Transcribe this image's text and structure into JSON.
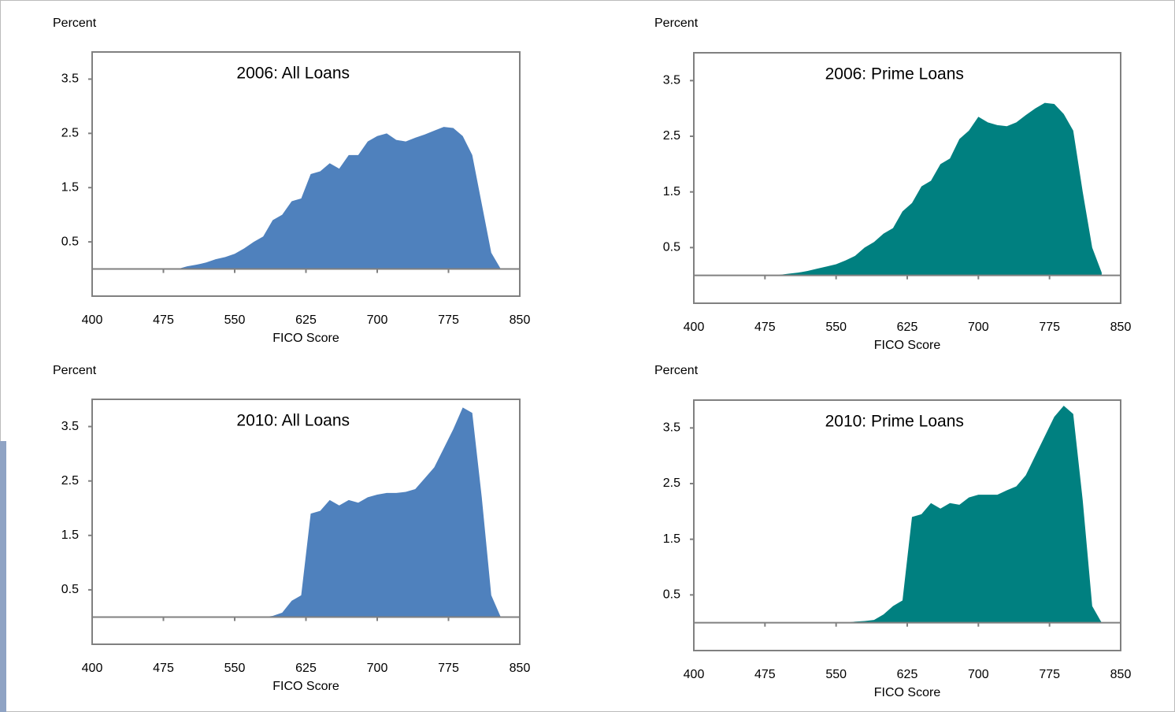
{
  "chart_data": [
    {
      "type": "area",
      "title": "2006:  All Loans",
      "y_label": "Percent",
      "x_label": "FICO Score",
      "color": "#4f81bd",
      "x": [
        480,
        490,
        500,
        510,
        520,
        530,
        540,
        550,
        560,
        570,
        580,
        590,
        600,
        610,
        620,
        630,
        640,
        650,
        660,
        670,
        680,
        690,
        700,
        710,
        720,
        730,
        740,
        750,
        760,
        770,
        780,
        790,
        800,
        810,
        820,
        830
      ],
      "values": [
        0,
        0,
        0.05,
        0.08,
        0.12,
        0.18,
        0.22,
        0.28,
        0.38,
        0.5,
        0.6,
        0.9,
        1.0,
        1.25,
        1.3,
        1.75,
        1.8,
        1.95,
        1.85,
        2.1,
        2.1,
        2.35,
        2.45,
        2.5,
        2.38,
        2.35,
        2.42,
        2.48,
        2.55,
        2.62,
        2.6,
        2.45,
        2.1,
        1.2,
        0.3,
        0
      ],
      "xlim": [
        400,
        850
      ],
      "xticks": [
        400,
        475,
        550,
        625,
        700,
        775,
        850
      ],
      "ylim": [
        -0.5,
        4
      ],
      "yticks": [
        0.5,
        1.5,
        2.5,
        3.5
      ],
      "grid": false
    },
    {
      "type": "area",
      "title": "2006:  Prime Loans",
      "y_label": "Percent",
      "x_label": "FICO Score",
      "color": "#008080",
      "x": [
        480,
        490,
        500,
        510,
        520,
        530,
        540,
        550,
        560,
        570,
        580,
        590,
        600,
        610,
        620,
        630,
        640,
        650,
        660,
        670,
        680,
        690,
        700,
        710,
        720,
        730,
        740,
        750,
        760,
        770,
        780,
        790,
        800,
        810,
        820,
        830
      ],
      "values": [
        0,
        0.01,
        0.03,
        0.05,
        0.08,
        0.12,
        0.16,
        0.2,
        0.27,
        0.35,
        0.5,
        0.6,
        0.75,
        0.85,
        1.15,
        1.3,
        1.6,
        1.7,
        2.0,
        2.1,
        2.45,
        2.6,
        2.85,
        2.75,
        2.7,
        2.68,
        2.75,
        2.88,
        3.0,
        3.1,
        3.08,
        2.9,
        2.6,
        1.5,
        0.5,
        0.05
      ],
      "xlim": [
        400,
        850
      ],
      "xticks": [
        400,
        475,
        550,
        625,
        700,
        775,
        850
      ],
      "ylim": [
        -0.5,
        4
      ],
      "yticks": [
        0.5,
        1.5,
        2.5,
        3.5
      ],
      "grid": false
    },
    {
      "type": "area",
      "title": "2010:  All Loans",
      "y_label": "Percent",
      "x_label": "FICO Score",
      "color": "#4f81bd",
      "x": [
        570,
        580,
        590,
        600,
        610,
        620,
        630,
        640,
        650,
        660,
        670,
        680,
        690,
        700,
        710,
        720,
        730,
        740,
        750,
        760,
        770,
        780,
        790,
        800,
        810,
        820,
        830
      ],
      "values": [
        0,
        0,
        0.02,
        0.08,
        0.3,
        0.4,
        1.9,
        1.95,
        2.15,
        2.05,
        2.15,
        2.1,
        2.2,
        2.25,
        2.28,
        2.28,
        2.3,
        2.35,
        2.55,
        2.75,
        3.1,
        3.45,
        3.85,
        3.75,
        2.2,
        0.4,
        0
      ],
      "xlim": [
        400,
        850
      ],
      "xticks": [
        400,
        475,
        550,
        625,
        700,
        775,
        850
      ],
      "ylim": [
        -0.5,
        4
      ],
      "yticks": [
        0.5,
        1.5,
        2.5,
        3.5
      ],
      "grid": false
    },
    {
      "type": "area",
      "title": "2010:  Prime Loans",
      "y_label": "Percent",
      "x_label": "FICO Score",
      "color": "#008080",
      "x": [
        560,
        570,
        580,
        590,
        600,
        610,
        620,
        630,
        640,
        650,
        660,
        670,
        680,
        690,
        700,
        710,
        720,
        730,
        740,
        750,
        760,
        770,
        780,
        790,
        800,
        810,
        820,
        830
      ],
      "values": [
        0,
        0.02,
        0.03,
        0.05,
        0.15,
        0.3,
        0.4,
        1.9,
        1.95,
        2.15,
        2.05,
        2.15,
        2.12,
        2.25,
        2.3,
        2.3,
        2.3,
        2.38,
        2.45,
        2.65,
        3.0,
        3.35,
        3.7,
        3.9,
        3.75,
        2.2,
        0.3,
        0
      ],
      "xlim": [
        400,
        850
      ],
      "xticks": [
        400,
        475,
        550,
        625,
        700,
        775,
        850
      ],
      "ylim": [
        -0.5,
        4
      ],
      "yticks": [
        0.5,
        1.5,
        2.5,
        3.5
      ],
      "grid": false
    }
  ]
}
